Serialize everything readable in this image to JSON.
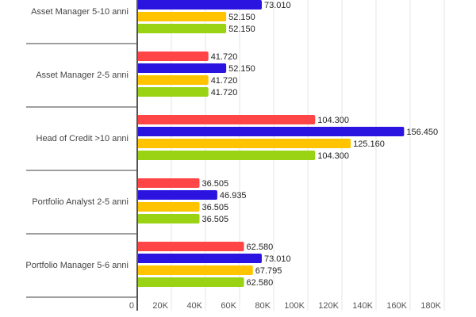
{
  "chart_data": {
    "type": "bar",
    "orientation": "horizontal",
    "categories": [
      "Asset Manager 5-10 anni",
      "Asset Manager 2-5 anni",
      "Head of Credit >10 anni",
      "Portfolio Analyst 2-5 anni",
      "Portfolio Manager 5-6 anni"
    ],
    "series": [
      {
        "name": "series-red",
        "color": "#ff4545",
        "values": [
          null,
          41720,
          104300,
          36505,
          62580
        ],
        "labels": [
          null,
          "41.720",
          "104.300",
          "36.505",
          "62.580"
        ]
      },
      {
        "name": "series-blue",
        "color": "#2c14e0",
        "values": [
          73010,
          52150,
          156450,
          46935,
          73010
        ],
        "labels": [
          "73.010",
          "52.150",
          "156.450",
          "46.935",
          "73.010"
        ]
      },
      {
        "name": "series-yellow",
        "color": "#ffc300",
        "values": [
          52150,
          41720,
          125160,
          36505,
          67795
        ],
        "labels": [
          "52.150",
          "41.720",
          "125.160",
          "36.505",
          "67.795"
        ]
      },
      {
        "name": "series-green",
        "color": "#99d314",
        "values": [
          52150,
          41720,
          104300,
          36505,
          62580
        ],
        "labels": [
          "52.150",
          "41.720",
          "104.300",
          "36.505",
          "62.580"
        ]
      }
    ],
    "xlim": [
      0,
      180000
    ],
    "xticks": [
      0,
      20000,
      40000,
      60000,
      80000,
      100000,
      120000,
      140000,
      160000,
      180000
    ],
    "xtick_labels": [
      "0",
      "20K",
      "40K",
      "60K",
      "80K",
      "100K",
      "120K",
      "140K",
      "160K",
      "180K"
    ],
    "grid": true
  }
}
